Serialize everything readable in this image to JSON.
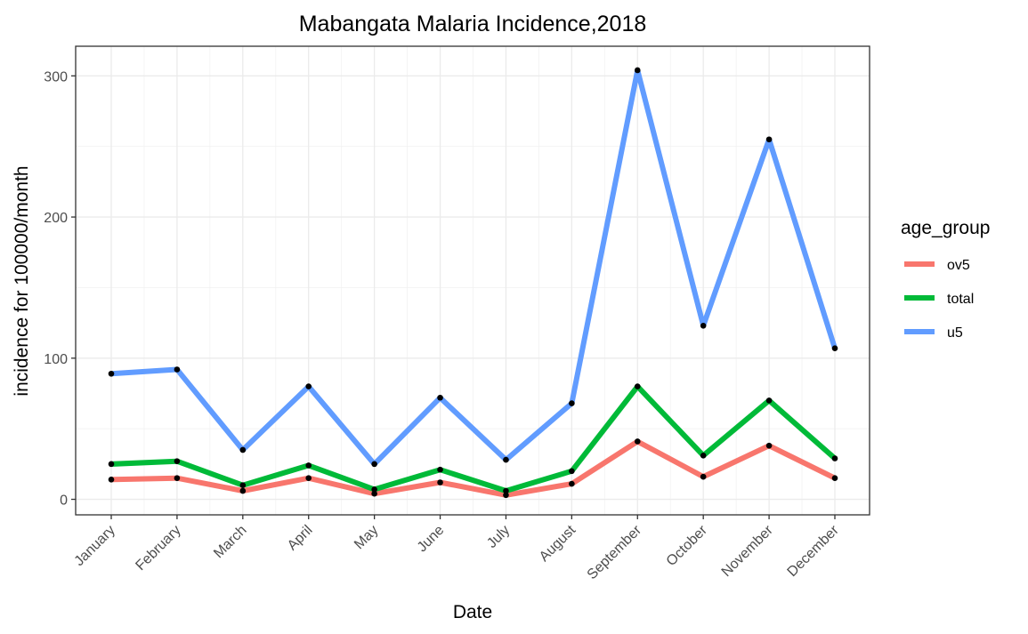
{
  "chart_data": {
    "type": "line",
    "title": "Mabangata Malaria Incidence,2018",
    "xlabel": "Date",
    "ylabel": "incidence for 100000/month",
    "categories": [
      "January",
      "February",
      "March",
      "April",
      "May",
      "June",
      "July",
      "August",
      "September",
      "October",
      "November",
      "December"
    ],
    "ylim": [
      -11,
      321
    ],
    "yticks": [
      0,
      100,
      200,
      300
    ],
    "grid": true,
    "legend": {
      "title": "age_group",
      "placement": "right"
    },
    "series": [
      {
        "name": "ov5",
        "color": "#F8766D",
        "values": [
          14,
          15,
          6,
          15,
          4,
          12,
          3,
          11,
          41,
          16,
          38,
          15
        ]
      },
      {
        "name": "total",
        "color": "#00BA38",
        "values": [
          25,
          27,
          10,
          24,
          7,
          21,
          6,
          20,
          80,
          31,
          70,
          29
        ]
      },
      {
        "name": "u5",
        "color": "#619CFF",
        "values": [
          89,
          92,
          35,
          80,
          25,
          72,
          28,
          68,
          304,
          123,
          255,
          107
        ]
      }
    ],
    "point_color": "#000000"
  }
}
